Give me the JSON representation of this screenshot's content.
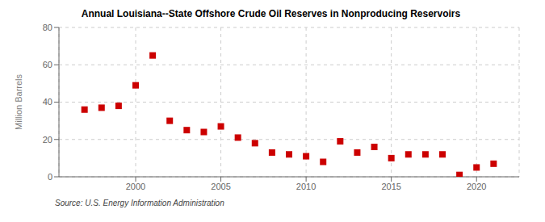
{
  "chart_data": {
    "type": "scatter",
    "title": "Annual Louisiana--State Offshore Crude Oil Reserves in Nonproducing Reservoirs",
    "ylabel": "Million Barrels",
    "source": "Source: U.S. Energy Information Administration",
    "x": [
      1997,
      1998,
      1999,
      2000,
      2001,
      2002,
      2003,
      2004,
      2005,
      2006,
      2007,
      2008,
      2009,
      2010,
      2011,
      2012,
      2013,
      2014,
      2015,
      2016,
      2017,
      2018,
      2019,
      2020,
      2021
    ],
    "values": [
      36,
      37,
      38,
      49,
      65,
      30,
      25,
      24,
      27,
      21,
      18,
      13,
      12,
      11,
      8,
      19,
      13,
      16,
      10,
      12,
      12,
      12,
      1,
      5,
      7
    ],
    "color": "#cc0000",
    "marker": "square",
    "grid": true,
    "xlim": [
      1995.5,
      2022.5
    ],
    "xticks": [
      2000,
      2005,
      2010,
      2015,
      2020
    ],
    "ylim": [
      0,
      80
    ],
    "yticks": [
      0,
      20,
      40,
      60,
      80
    ]
  }
}
